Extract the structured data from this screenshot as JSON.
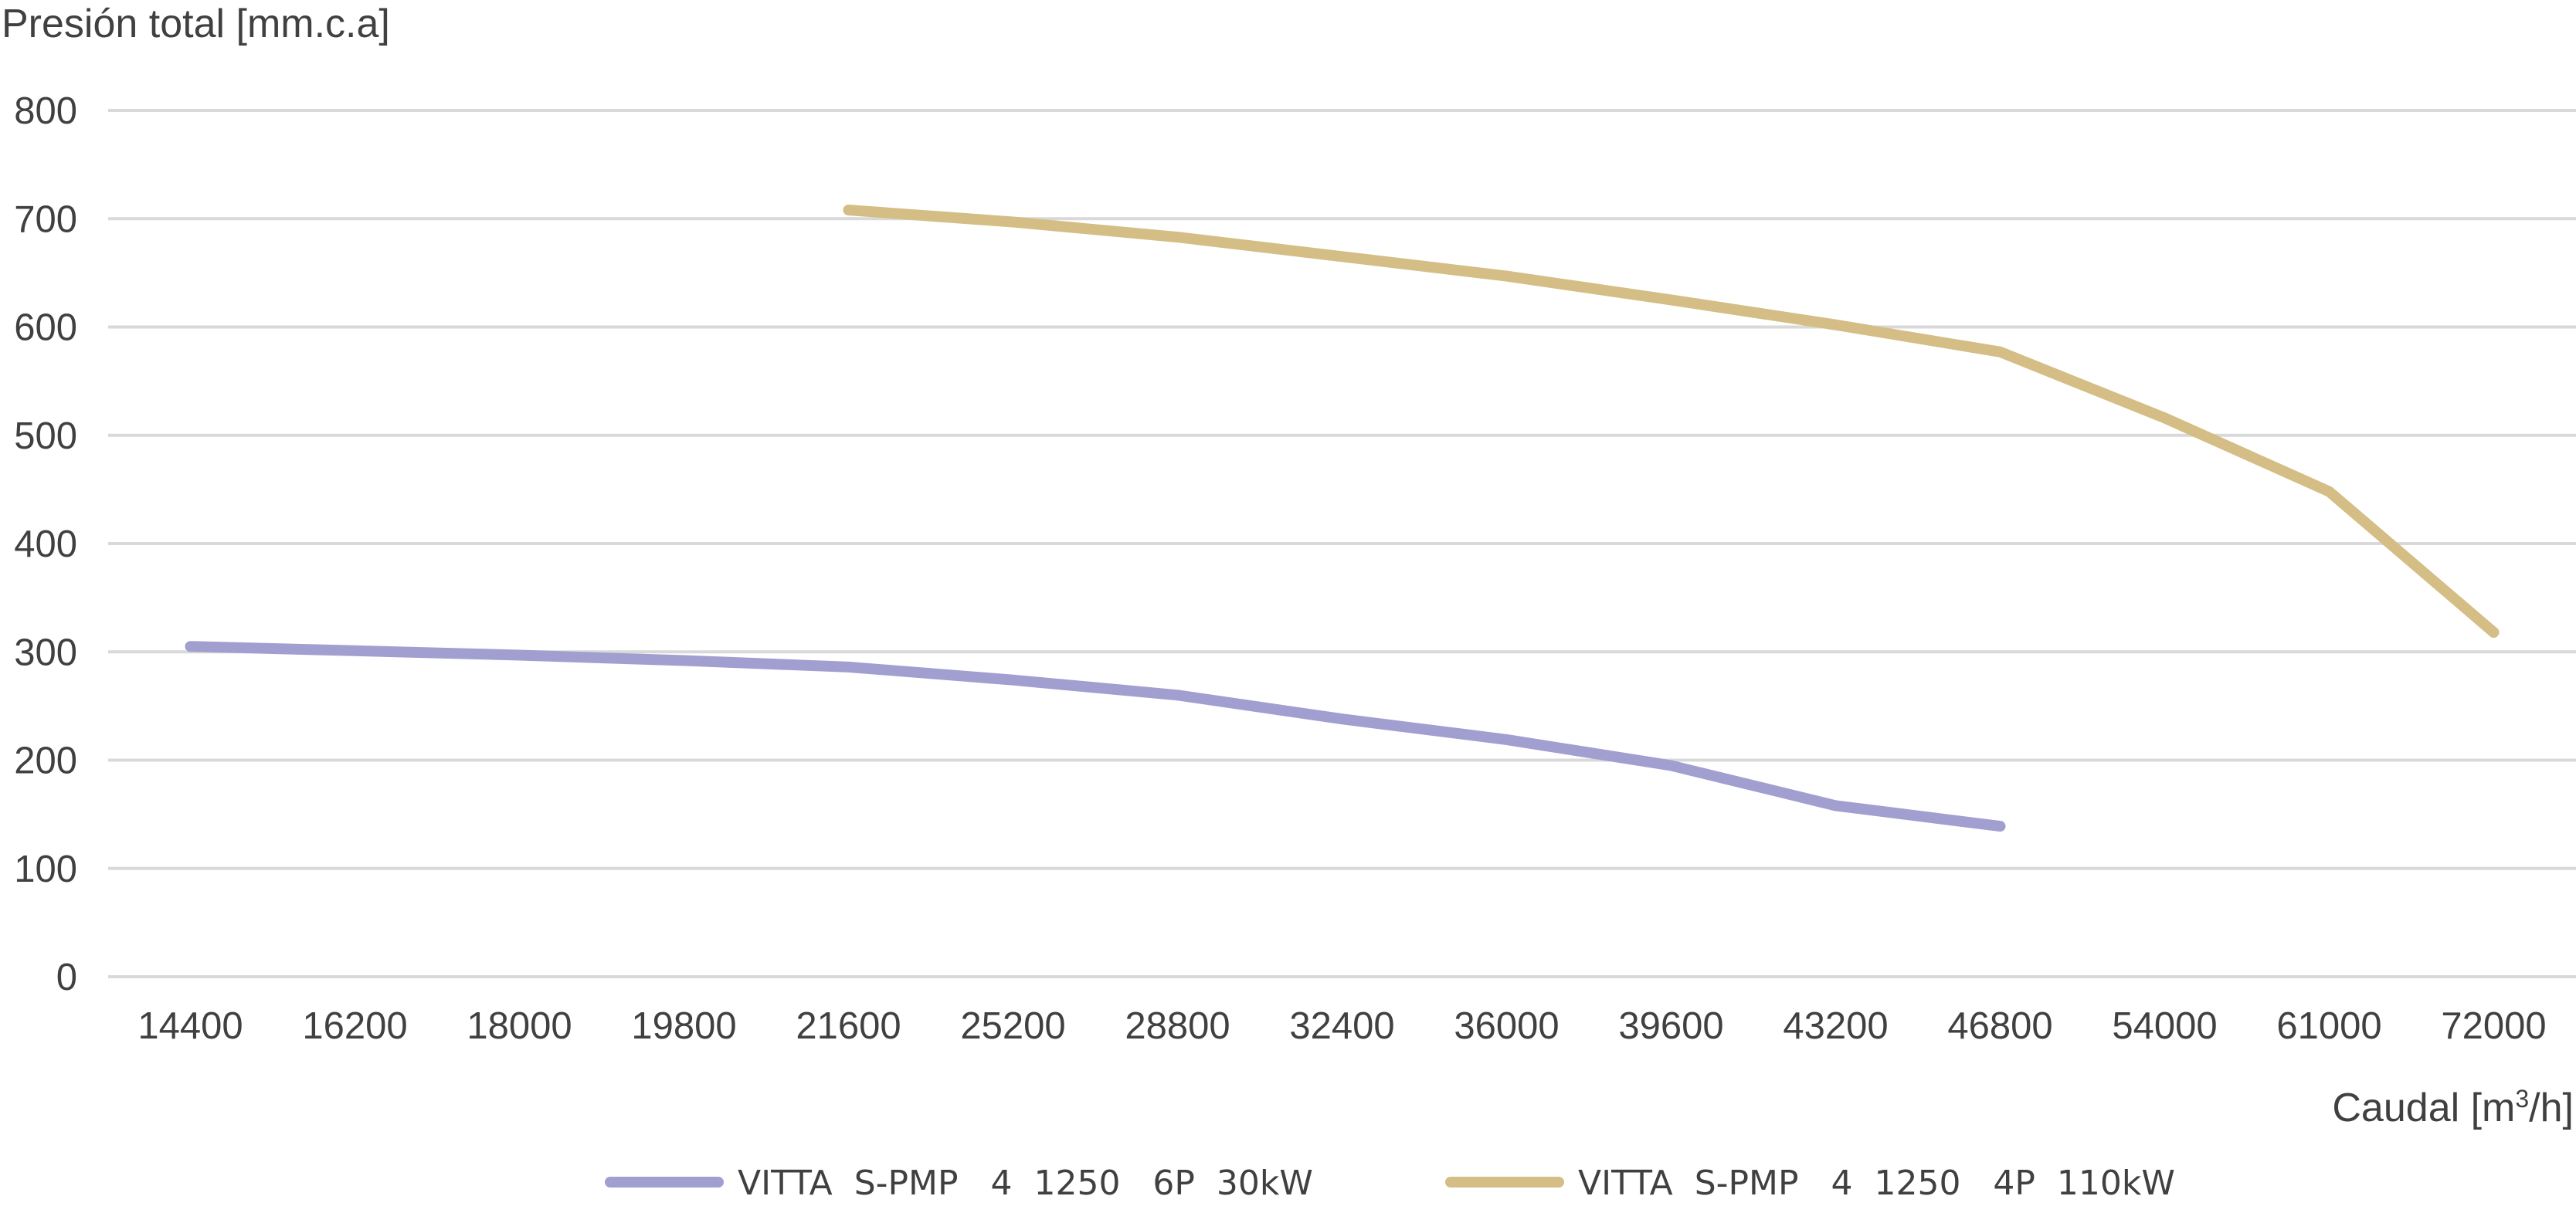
{
  "chart_data": {
    "type": "line",
    "ylabel": "Presión total [mm.c.a]",
    "xlabel_main": "Caudal [m",
    "xlabel_sup": "3",
    "xlabel_end": "/h]",
    "categories": [
      "14400",
      "16200",
      "18000",
      "19800",
      "21600",
      "25200",
      "28800",
      "32400",
      "36000",
      "39600",
      "43200",
      "46800",
      "54000",
      "61000",
      "72000"
    ],
    "ylim": [
      0,
      800
    ],
    "yticks": [
      "0",
      "100",
      "200",
      "300",
      "400",
      "500",
      "600",
      "700",
      "800"
    ],
    "grid": true,
    "legend_position": "bottom",
    "series": [
      {
        "name": "VITTA  S-PMP   4  1250   6P  30kW",
        "color": "#a09fd0",
        "values": [
          305,
          301,
          297,
          292,
          286,
          274,
          260,
          238,
          219,
          195,
          158,
          139,
          null,
          null,
          null
        ]
      },
      {
        "name": "VITTA  S-PMP   4  1250   4P  110kW",
        "color": "#d4be85",
        "values": [
          null,
          null,
          null,
          null,
          708,
          697,
          683,
          665,
          647,
          625,
          602,
          577,
          516,
          448,
          318
        ]
      }
    ],
    "grid_color": "#d9d9d9"
  }
}
